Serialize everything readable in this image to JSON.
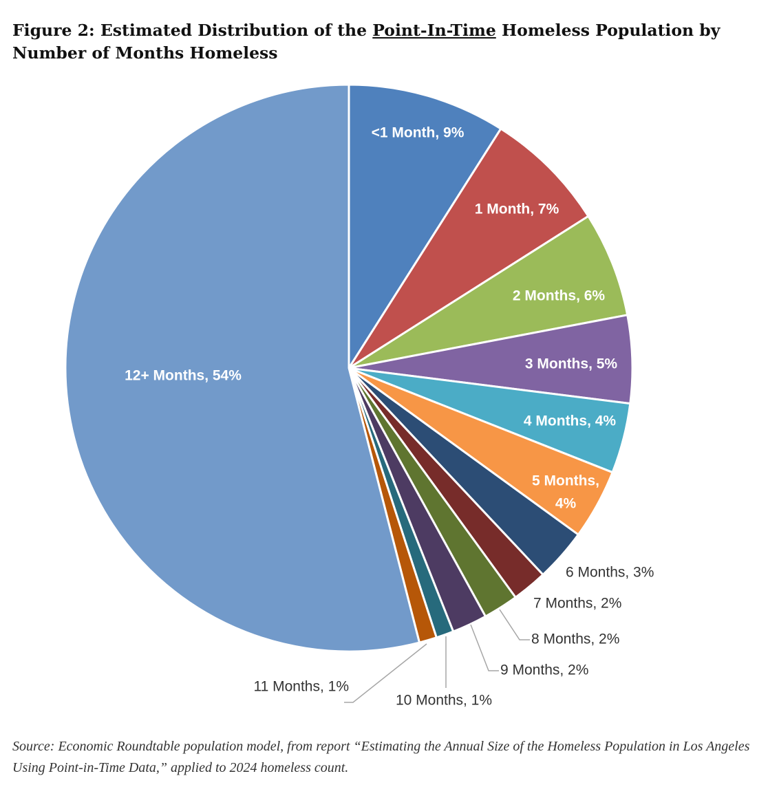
{
  "title": {
    "prefix": "Figure 2: Estimated Distribution of the ",
    "underlined": "Point-In-Time",
    "suffix": " Homeless Population by Number of Months Homeless"
  },
  "source": "Source: Economic Roundtable population model, from report “Estimating the Annual Size of the Homeless Population in Los Angeles Using Point-in-Time Data,” applied to 2024 homeless count.",
  "chart_data": {
    "type": "pie",
    "title": "Figure 2: Estimated Distribution of the Point-In-Time Homeless Population by Number of Months Homeless",
    "categories": [
      "<1 Month",
      "1 Month",
      "2 Months",
      "3 Months",
      "4 Months",
      "5 Months",
      "6 Months",
      "7 Months",
      "8 Months",
      "9 Months",
      "10 Months",
      "11 Months",
      "12+ Months"
    ],
    "values": [
      9,
      7,
      6,
      5,
      4,
      4,
      3,
      2,
      2,
      2,
      1,
      1,
      54
    ],
    "labels": [
      "<1 Month, 9%",
      "1 Month, 7%",
      "2 Months, 6%",
      "3 Months, 5%",
      "4 Months, 4%",
      "5 Months, 4%",
      "6 Months, 3%",
      "7 Months, 2%",
      "8 Months, 2%",
      "9 Months, 2%",
      "10 Months, 1%",
      "11 Months, 1%",
      "12+ Months, 54%"
    ],
    "colors": [
      "#4F81BD",
      "#C0504D",
      "#9BBB59",
      "#8064A2",
      "#4BACC6",
      "#F79646",
      "#2C4D75",
      "#772C2A",
      "#5F7530",
      "#4D3B62",
      "#276A7C",
      "#B65708",
      "#729ACA"
    ],
    "start_angle_deg": 0,
    "direction": "clockwise",
    "legend": "none"
  }
}
